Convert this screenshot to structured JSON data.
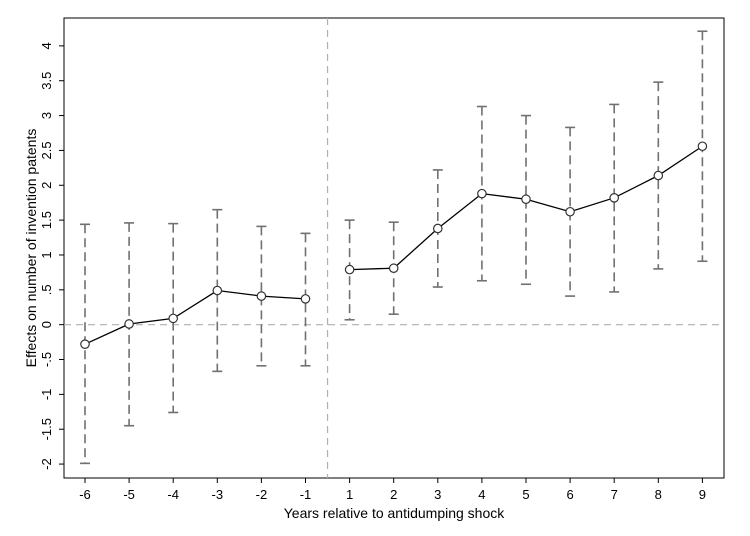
{
  "chart_data": {
    "type": "scatter",
    "title": "",
    "xlabel": "Years relative to antidumping shock",
    "ylabel": "Effects on number of invention patents",
    "ylim": [
      -2.2,
      4.4
    ],
    "x_ticks": [
      "-6",
      "-5",
      "-4",
      "-3",
      "-2",
      "-1",
      "1",
      "2",
      "3",
      "4",
      "5",
      "6",
      "7",
      "8",
      "9"
    ],
    "y_ticks": [
      {
        "value": -2,
        "label": "-2"
      },
      {
        "value": -1.5,
        "label": "-1.5"
      },
      {
        "value": -1,
        "label": "-1"
      },
      {
        "value": -0.5,
        "label": "-.5"
      },
      {
        "value": 0,
        "label": "0"
      },
      {
        "value": 0.5,
        "label": ".5"
      },
      {
        "value": 1,
        "label": "1"
      },
      {
        "value": 1.5,
        "label": "1.5"
      },
      {
        "value": 2,
        "label": "2"
      },
      {
        "value": 2.5,
        "label": "2.5"
      },
      {
        "value": 3,
        "label": "3"
      },
      {
        "value": 3.5,
        "label": "3.5"
      },
      {
        "value": 4,
        "label": "4"
      }
    ],
    "grid": false,
    "reference_lines": {
      "y": 0,
      "x_between": [
        "-1",
        "1"
      ]
    },
    "series": [
      {
        "points": [
          {
            "x": "-6",
            "y": -0.28,
            "lo": -1.99,
            "hi": 1.44
          },
          {
            "x": "-5",
            "y": 0.01,
            "lo": -1.45,
            "hi": 1.46
          },
          {
            "x": "-4",
            "y": 0.09,
            "lo": -1.26,
            "hi": 1.45
          },
          {
            "x": "-3",
            "y": 0.49,
            "lo": -0.67,
            "hi": 1.65
          },
          {
            "x": "-2",
            "y": 0.41,
            "lo": -0.59,
            "hi": 1.41
          },
          {
            "x": "-1",
            "y": 0.37,
            "lo": -0.59,
            "hi": 1.31
          },
          {
            "x": "1",
            "y": 0.79,
            "lo": 0.07,
            "hi": 1.5
          },
          {
            "x": "2",
            "y": 0.81,
            "lo": 0.15,
            "hi": 1.47
          },
          {
            "x": "3",
            "y": 1.38,
            "lo": 0.54,
            "hi": 2.22
          },
          {
            "x": "4",
            "y": 1.88,
            "lo": 0.63,
            "hi": 3.13
          },
          {
            "x": "5",
            "y": 1.8,
            "lo": 0.58,
            "hi": 3.0
          },
          {
            "x": "6",
            "y": 1.62,
            "lo": 0.41,
            "hi": 2.83
          },
          {
            "x": "7",
            "y": 1.82,
            "lo": 0.47,
            "hi": 3.16
          },
          {
            "x": "8",
            "y": 2.14,
            "lo": 0.8,
            "hi": 3.48
          },
          {
            "x": "9",
            "y": 2.56,
            "lo": 0.91,
            "hi": 4.21
          }
        ],
        "line_segments": [
          [
            "-6",
            "-1"
          ],
          [
            "1",
            "9"
          ]
        ]
      }
    ],
    "colors": {
      "line": "#000000",
      "ci": "#707070",
      "reference": "#b0b0b0"
    }
  }
}
